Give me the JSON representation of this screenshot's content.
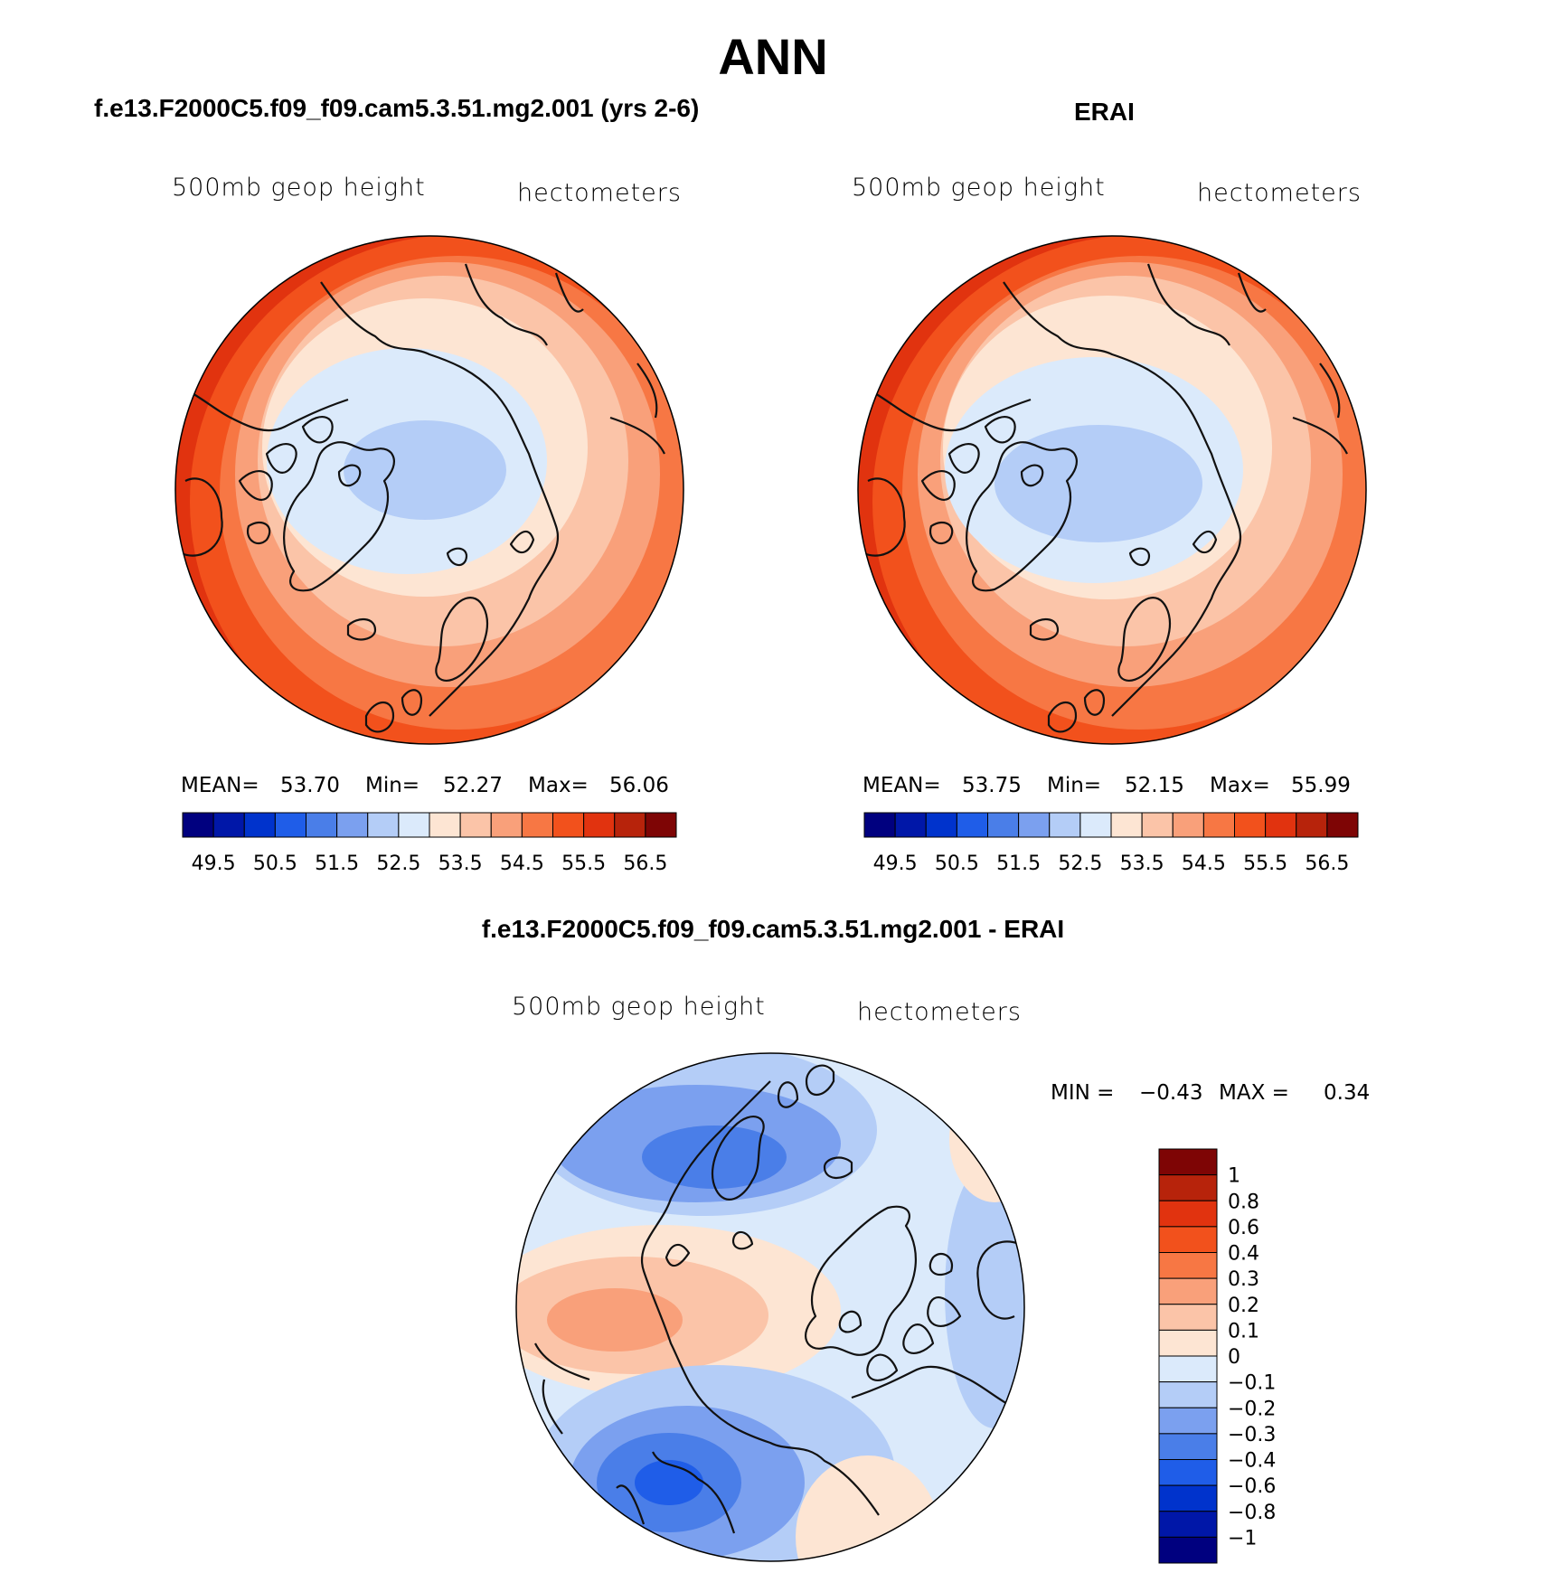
{
  "figure": {
    "title": "ANN",
    "panels": [
      {
        "title": "f.e13.F2000C5.f09_f09.cam5.3.51.mg2.001 (yrs 2-6)",
        "field_label": "500mb geop height",
        "units_label": "hectometers",
        "stats": {
          "mean_label": "MEAN=",
          "mean": "53.70",
          "min_label": "Min=",
          "min": "52.27",
          "max_label": "Max=",
          "max": "56.06"
        }
      },
      {
        "title": "ERAI",
        "field_label": "500mb geop height",
        "units_label": "hectometers",
        "stats": {
          "mean_label": "MEAN=",
          "mean": "53.75",
          "min_label": "Min=",
          "min": "52.15",
          "max_label": "Max=",
          "max": "55.99"
        }
      },
      {
        "title": "f.e13.F2000C5.f09_f09.cam5.3.51.mg2.001 - ERAI",
        "field_label": "500mb geop height",
        "units_label": "hectometers",
        "stats": {
          "min_label": "MIN =",
          "min": "−0.43",
          "max_label": "MAX =",
          "max": "0.34"
        }
      }
    ]
  },
  "colorbars": {
    "abs": {
      "colors": [
        "#00007f",
        "#0017a8",
        "#0033cc",
        "#1f5de8",
        "#4a7ee8",
        "#7ba0ef",
        "#b4cdf7",
        "#dbeafb",
        "#fde5d3",
        "#fbc4a8",
        "#f9a07a",
        "#f77744",
        "#f2511c",
        "#e1330f",
        "#b7230b",
        "#7e0505"
      ],
      "labels": [
        "49.5",
        "50.5",
        "51.5",
        "52.5",
        "53.5",
        "54.5",
        "55.5",
        "56.5"
      ]
    },
    "diff": {
      "colors": [
        "#7e0505",
        "#b7230b",
        "#e1330f",
        "#f2511c",
        "#f77744",
        "#f9a07a",
        "#fbc4a8",
        "#fde5d3",
        "#dbeafb",
        "#b4cdf7",
        "#7ba0ef",
        "#4a7ee8",
        "#1f5de8",
        "#0033cc",
        "#0017a8",
        "#00007f"
      ],
      "labels": [
        "1",
        "0.8",
        "0.6",
        "0.4",
        "0.3",
        "0.2",
        "0.1",
        "0",
        "−0.1",
        "−0.2",
        "−0.3",
        "−0.4",
        "−0.6",
        "−0.8",
        "−1"
      ]
    }
  }
}
